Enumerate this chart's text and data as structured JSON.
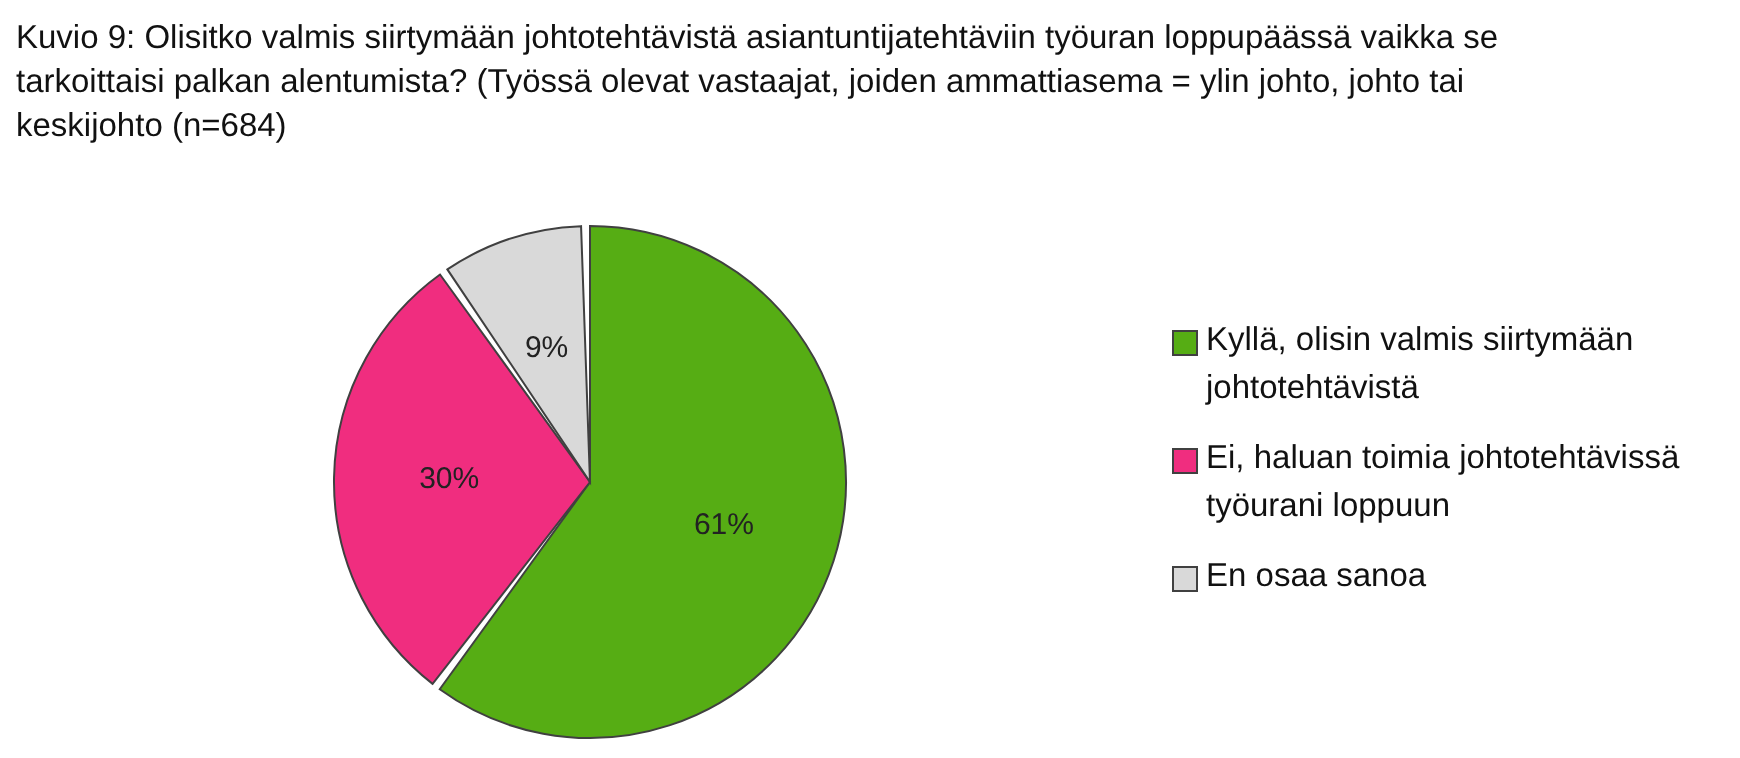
{
  "chart_data": {
    "type": "pie",
    "title": "Kuvio 9: Olisitko valmis siirtymään johtotehtävistä asiantuntijatehtäviin työuran loppupäässä vaikka se tarkoittaisi palkan alentumista? (Työssä olevat vastaajat, joiden ammattiasema = ylin johto, johto tai keskijohto (n=684)",
    "categories": [
      "Kyllä, olisin valmis siirtymään johtotehtävistä",
      "Ei, haluan toimia johtotehtävissä työurani loppuun",
      "En osaa sanoa"
    ],
    "values": [
      61,
      30,
      9
    ],
    "colors": [
      "#56ad14",
      "#f02d7f",
      "#d9d9d9"
    ],
    "value_labels": [
      "61%",
      "30%",
      "9%"
    ],
    "legend": "right"
  }
}
